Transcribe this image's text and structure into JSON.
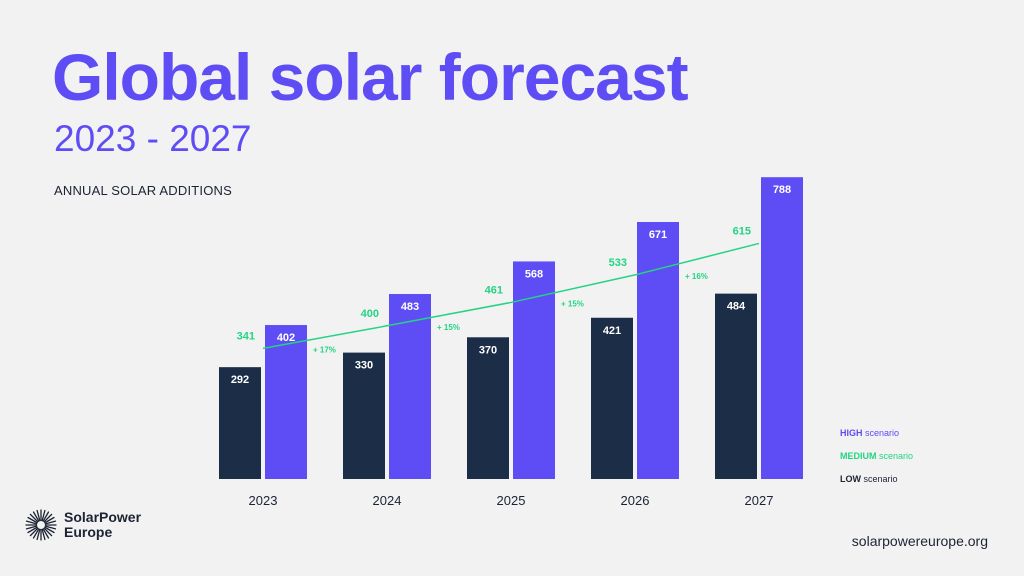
{
  "header": {
    "title": "Global solar forecast",
    "subtitle": "2023 - 2027",
    "chart_label": "ANNUAL SOLAR ADDITIONS"
  },
  "colors": {
    "title": "#5e4cf5",
    "high": "#5e4cf5",
    "medium": "#23d483",
    "low": "#1c2d47",
    "text_dark": "#1c2333",
    "background": "#f2f2f2"
  },
  "chart_data": {
    "type": "bar",
    "categories": [
      "2023",
      "2024",
      "2025",
      "2026",
      "2027"
    ],
    "series": [
      {
        "name": "LOW",
        "values": [
          292,
          330,
          370,
          421,
          484
        ]
      },
      {
        "name": "HIGH",
        "values": [
          402,
          483,
          568,
          671,
          788
        ]
      },
      {
        "name": "MEDIUM",
        "type": "line",
        "values": [
          341,
          400,
          461,
          533,
          615
        ]
      }
    ],
    "growth_labels": [
      "+ 17%",
      "+ 15%",
      "+ 15%",
      "+ 16%"
    ],
    "ylim": [
      0,
      800
    ],
    "grid": false,
    "legend_position": "bottom-right"
  },
  "legend": [
    {
      "key": "HIGH",
      "rest": " scenario",
      "color": "#5e4cf5"
    },
    {
      "key": "MEDIUM",
      "rest": " scenario",
      "color": "#23d483"
    },
    {
      "key": "LOW",
      "rest": " scenario",
      "color": "#1c2333"
    }
  ],
  "footer": {
    "logo_line1": "SolarPower",
    "logo_line2": "Europe",
    "website": "solarpowereurope.org",
    "logo_icon": "sunburst-icon"
  }
}
